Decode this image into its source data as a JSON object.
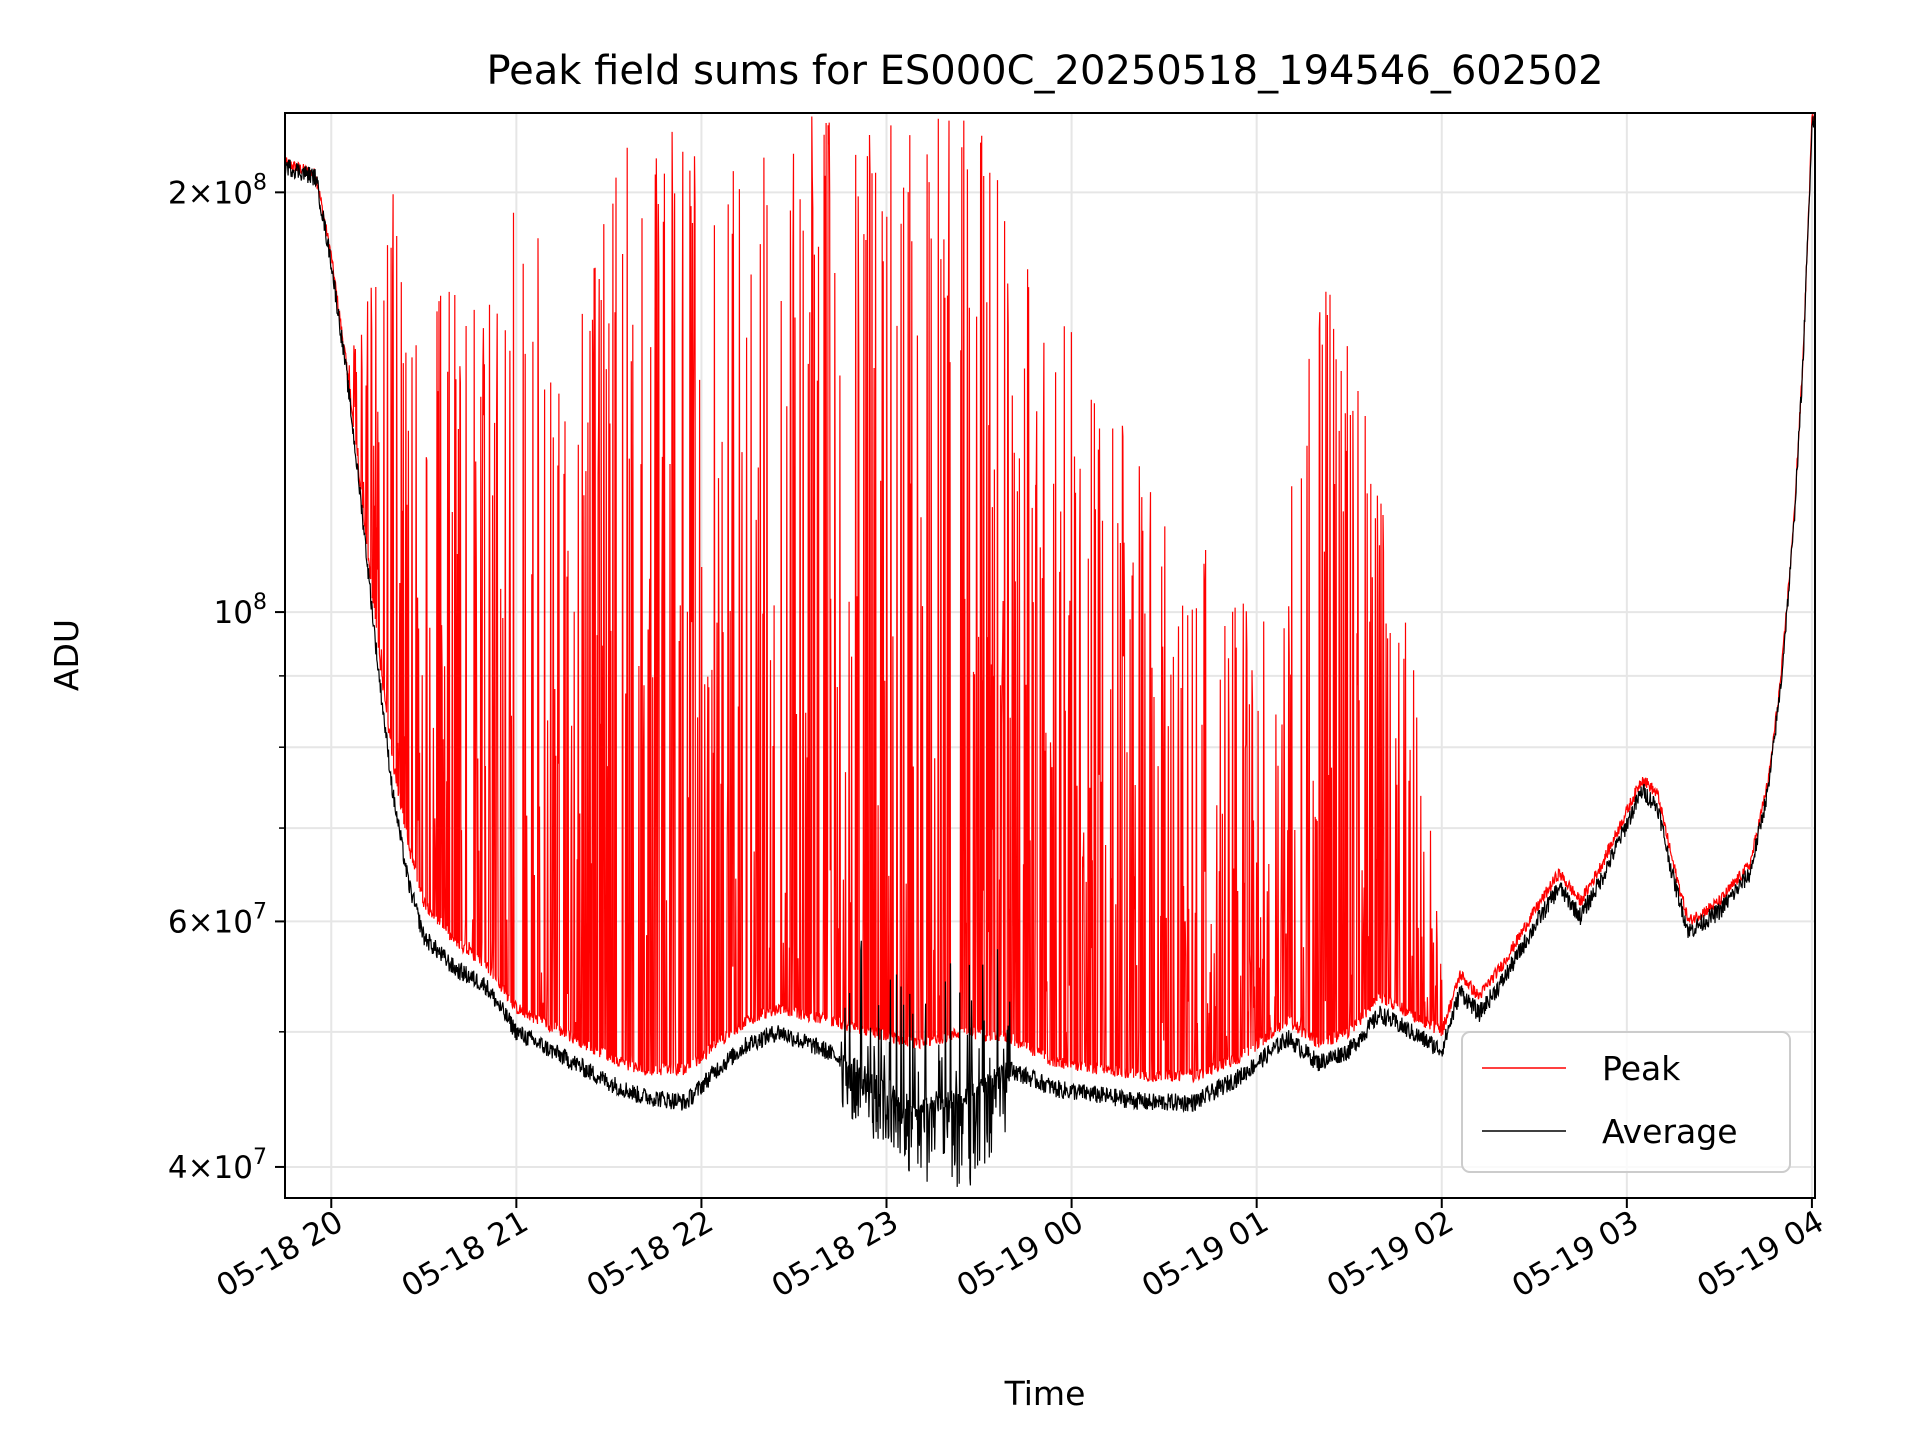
{
  "chart_data": {
    "type": "line",
    "title": "Peak field sums for ES000C_20250518_194546_602502",
    "xlabel": "Time",
    "ylabel": "ADU",
    "y_scale": "log",
    "grid": true,
    "legend_placement": "lower-right",
    "xlim": [
      "2025-05-18 19:45",
      "2025-05-19 04:01"
    ],
    "ylim": [
      38000000,
      228000000
    ],
    "x_ticks": [
      {
        "value": "2025-05-18 20:00",
        "label": "05-18 20"
      },
      {
        "value": "2025-05-18 21:00",
        "label": "05-18 21"
      },
      {
        "value": "2025-05-18 22:00",
        "label": "05-18 22"
      },
      {
        "value": "2025-05-18 23:00",
        "label": "05-18 23"
      },
      {
        "value": "2025-05-19 00:00",
        "label": "05-19 00"
      },
      {
        "value": "2025-05-19 01:00",
        "label": "05-19 01"
      },
      {
        "value": "2025-05-19 02:00",
        "label": "05-19 02"
      },
      {
        "value": "2025-05-19 03:00",
        "label": "05-19 03"
      },
      {
        "value": "2025-05-19 04:00",
        "label": "05-19 04"
      }
    ],
    "y_ticks": [
      {
        "value": 40000000,
        "base": "4",
        "exp": "7"
      },
      {
        "value": 60000000,
        "base": "6",
        "exp": "7"
      },
      {
        "value": 100000000,
        "base": "",
        "exp": "8"
      },
      {
        "value": 200000000,
        "base": "2",
        "exp": "8"
      }
    ],
    "y_minor_ticks": [
      50000000,
      70000000,
      80000000,
      90000000
    ],
    "series": [
      {
        "name": "Peak",
        "color": "#ff0000",
        "baseline": [
          [
            "2025-05-18 19:45",
            210000000
          ],
          [
            "2025-05-18 19:55",
            206000000
          ],
          [
            "2025-05-18 20:00",
            180000000
          ],
          [
            "2025-05-18 20:05",
            150000000
          ],
          [
            "2025-05-18 20:10",
            120000000
          ],
          [
            "2025-05-18 20:15",
            95000000
          ],
          [
            "2025-05-18 20:20",
            78000000
          ],
          [
            "2025-05-18 20:25",
            68000000
          ],
          [
            "2025-05-18 20:30",
            62000000
          ],
          [
            "2025-05-18 20:40",
            58000000
          ],
          [
            "2025-05-18 20:50",
            56000000
          ],
          [
            "2025-05-18 21:00",
            52000000
          ],
          [
            "2025-05-18 21:15",
            50000000
          ],
          [
            "2025-05-18 21:30",
            48000000
          ],
          [
            "2025-05-18 21:40",
            47000000
          ],
          [
            "2025-05-18 21:55",
            47000000
          ],
          [
            "2025-05-18 22:05",
            49000000
          ],
          [
            "2025-05-18 22:15",
            51000000
          ],
          [
            "2025-05-18 22:25",
            52000000
          ],
          [
            "2025-05-18 22:40",
            51000000
          ],
          [
            "2025-05-18 22:55",
            50000000
          ],
          [
            "2025-05-18 23:10",
            49000000
          ],
          [
            "2025-05-18 23:25",
            50000000
          ],
          [
            "2025-05-18 23:40",
            49500000
          ],
          [
            "2025-05-18 23:55",
            47500000
          ],
          [
            "2025-05-19 00:10",
            47000000
          ],
          [
            "2025-05-19 00:25",
            46500000
          ],
          [
            "2025-05-19 00:40",
            46500000
          ],
          [
            "2025-05-19 00:55",
            48000000
          ],
          [
            "2025-05-19 01:10",
            51000000
          ],
          [
            "2025-05-19 01:20",
            49000000
          ],
          [
            "2025-05-19 01:30",
            50000000
          ],
          [
            "2025-05-19 01:40",
            53000000
          ],
          [
            "2025-05-19 01:50",
            51500000
          ],
          [
            "2025-05-19 02:00",
            50000000
          ],
          [
            "2025-05-19 02:06",
            55000000
          ],
          [
            "2025-05-19 02:12",
            53000000
          ],
          [
            "2025-05-19 02:20",
            56000000
          ],
          [
            "2025-05-19 02:30",
            61000000
          ],
          [
            "2025-05-19 02:38",
            65000000
          ],
          [
            "2025-05-19 02:45",
            62000000
          ],
          [
            "2025-05-19 02:52",
            66000000
          ],
          [
            "2025-05-19 03:00",
            72000000
          ],
          [
            "2025-05-19 03:05",
            76000000
          ],
          [
            "2025-05-19 03:10",
            74000000
          ],
          [
            "2025-05-19 03:15",
            66000000
          ],
          [
            "2025-05-19 03:20",
            60000000
          ],
          [
            "2025-05-19 03:30",
            62000000
          ],
          [
            "2025-05-19 03:40",
            66000000
          ],
          [
            "2025-05-19 03:46",
            76000000
          ],
          [
            "2025-05-19 03:50",
            90000000
          ],
          [
            "2025-05-19 03:54",
            115000000
          ],
          [
            "2025-05-19 03:57",
            150000000
          ],
          [
            "2025-05-19 03:59",
            195000000
          ],
          [
            "2025-05-19 04:00",
            225000000
          ],
          [
            "2025-05-19 04:01",
            227000000
          ]
        ],
        "spike_max": [
          [
            "2025-05-18 20:05",
            150000000
          ],
          [
            "2025-05-18 20:20",
            200000000
          ],
          [
            "2025-05-18 20:40",
            170000000
          ],
          [
            "2025-05-18 21:00",
            205000000
          ],
          [
            "2025-05-18 21:20",
            165000000
          ],
          [
            "2025-05-18 21:35",
            215000000
          ],
          [
            "2025-05-18 21:50",
            228000000
          ],
          [
            "2025-05-18 22:05",
            228000000
          ],
          [
            "2025-05-18 22:30",
            228000000
          ],
          [
            "2025-05-18 23:00",
            228000000
          ],
          [
            "2025-05-18 23:30",
            228000000
          ],
          [
            "2025-05-18 23:50",
            170000000
          ],
          [
            "2025-05-19 00:10",
            150000000
          ],
          [
            "2025-05-19 00:25",
            125000000
          ],
          [
            "2025-05-19 00:45",
            110000000
          ],
          [
            "2025-05-19 01:05",
            100000000
          ],
          [
            "2025-05-19 01:20",
            185000000
          ],
          [
            "2025-05-19 01:35",
            140000000
          ],
          [
            "2025-05-19 01:50",
            95000000
          ],
          [
            "2025-05-19 02:00",
            60000000
          ]
        ]
      },
      {
        "name": "Average",
        "color": "#000000",
        "baseline": [
          [
            "2025-05-18 19:45",
            209000000
          ],
          [
            "2025-05-18 19:55",
            205000000
          ],
          [
            "2025-05-18 20:00",
            178000000
          ],
          [
            "2025-05-18 20:05",
            148000000
          ],
          [
            "2025-05-18 20:10",
            118000000
          ],
          [
            "2025-05-18 20:15",
            92000000
          ],
          [
            "2025-05-18 20:20",
            74000000
          ],
          [
            "2025-05-18 20:25",
            64000000
          ],
          [
            "2025-05-18 20:30",
            58500000
          ],
          [
            "2025-05-18 20:40",
            55500000
          ],
          [
            "2025-05-18 20:50",
            54000000
          ],
          [
            "2025-05-18 21:00",
            50000000
          ],
          [
            "2025-05-18 21:15",
            48000000
          ],
          [
            "2025-05-18 21:30",
            46000000
          ],
          [
            "2025-05-18 21:40",
            45000000
          ],
          [
            "2025-05-18 21:55",
            44500000
          ],
          [
            "2025-05-18 22:05",
            47000000
          ],
          [
            "2025-05-18 22:15",
            49000000
          ],
          [
            "2025-05-18 22:25",
            50000000
          ],
          [
            "2025-05-18 22:40",
            48500000
          ],
          [
            "2025-05-18 22:55",
            46500000
          ],
          [
            "2025-05-18 23:10",
            44000000
          ],
          [
            "2025-05-18 23:25",
            45000000
          ],
          [
            "2025-05-18 23:40",
            47000000
          ],
          [
            "2025-05-18 23:55",
            45500000
          ],
          [
            "2025-05-19 00:10",
            45000000
          ],
          [
            "2025-05-19 00:25",
            44500000
          ],
          [
            "2025-05-19 00:40",
            44500000
          ],
          [
            "2025-05-19 00:55",
            46500000
          ],
          [
            "2025-05-19 01:10",
            49500000
          ],
          [
            "2025-05-19 01:20",
            47500000
          ],
          [
            "2025-05-19 01:30",
            48500000
          ],
          [
            "2025-05-19 01:40",
            51500000
          ],
          [
            "2025-05-19 01:50",
            50000000
          ],
          [
            "2025-05-19 02:00",
            48500000
          ],
          [
            "2025-05-19 02:06",
            53500000
          ],
          [
            "2025-05-19 02:12",
            51500000
          ],
          [
            "2025-05-19 02:20",
            54500000
          ],
          [
            "2025-05-19 02:30",
            59500000
          ],
          [
            "2025-05-19 02:38",
            63500000
          ],
          [
            "2025-05-19 02:45",
            60500000
          ],
          [
            "2025-05-19 02:52",
            64500000
          ],
          [
            "2025-05-19 03:00",
            70500000
          ],
          [
            "2025-05-19 03:05",
            74500000
          ],
          [
            "2025-05-19 03:10",
            72500000
          ],
          [
            "2025-05-19 03:15",
            64500000
          ],
          [
            "2025-05-19 03:20",
            59000000
          ],
          [
            "2025-05-19 03:30",
            61000000
          ],
          [
            "2025-05-19 03:40",
            65000000
          ],
          [
            "2025-05-19 03:46",
            75000000
          ],
          [
            "2025-05-19 03:50",
            89000000
          ],
          [
            "2025-05-19 03:54",
            114000000
          ],
          [
            "2025-05-19 03:57",
            149000000
          ],
          [
            "2025-05-19 03:59",
            194000000
          ],
          [
            "2025-05-19 04:00",
            224000000
          ],
          [
            "2025-05-19 04:01",
            226000000
          ]
        ],
        "dip_min": [
          [
            "2025-05-18 22:45",
            44000000
          ],
          [
            "2025-05-18 23:00",
            41000000
          ],
          [
            "2025-05-18 23:10",
            39000000
          ],
          [
            "2025-05-18 23:20",
            38500000
          ],
          [
            "2025-05-18 23:30",
            38500000
          ],
          [
            "2025-05-18 23:40",
            43000000
          ]
        ]
      }
    ]
  }
}
